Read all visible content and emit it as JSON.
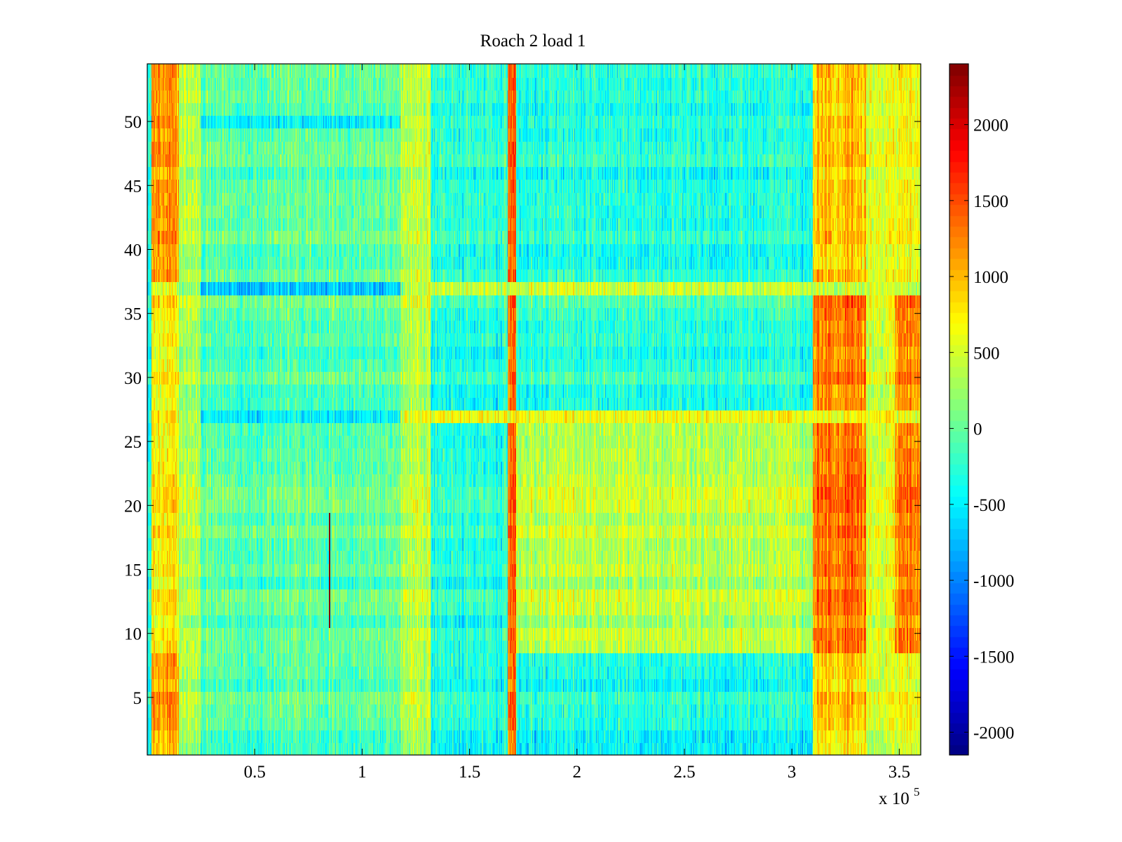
{
  "chart_data": {
    "type": "heatmap",
    "title": "Roach 2 load 1",
    "xlabel": "",
    "ylabel": "",
    "x_exponent_label": "x 10",
    "x_exponent_power": "5",
    "xlim": [
      0,
      3.6
    ],
    "ylim": [
      0.5,
      54.5
    ],
    "x_ticks": [
      0.5,
      1,
      1.5,
      2,
      2.5,
      3,
      3.5
    ],
    "x_tick_labels": [
      "0.5",
      "1",
      "1.5",
      "2",
      "2.5",
      "3",
      "3.5"
    ],
    "y_ticks": [
      5,
      10,
      15,
      20,
      25,
      30,
      35,
      40,
      45,
      50
    ],
    "y_tick_labels": [
      "5",
      "10",
      "15",
      "20",
      "25",
      "30",
      "35",
      "40",
      "45",
      "50"
    ],
    "rows": 54,
    "colormap": "jet",
    "colorbar": {
      "clim": [
        -2150,
        2400
      ],
      "ticks": [
        -2000,
        -1500,
        -1000,
        -500,
        0,
        500,
        1000,
        1500,
        2000
      ],
      "tick_labels": [
        "-2000",
        "-1500",
        "-1000",
        "-500",
        "0",
        "500",
        "1000",
        "1500",
        "2000"
      ]
    },
    "column_bands": [
      {
        "x_start": 0.0,
        "x_end": 0.02,
        "level": -300
      },
      {
        "x_start": 0.02,
        "x_end": 0.15,
        "level": 700
      },
      {
        "x_start": 0.15,
        "x_end": 0.25,
        "level": 300
      },
      {
        "x_start": 0.25,
        "x_end": 1.18,
        "level": -50
      },
      {
        "x_start": 1.18,
        "x_end": 1.32,
        "level": 400
      },
      {
        "x_start": 1.32,
        "x_end": 1.68,
        "level": -300
      },
      {
        "x_start": 1.68,
        "x_end": 1.72,
        "level": 1400
      },
      {
        "x_start": 1.72,
        "x_end": 3.1,
        "level": -250
      },
      {
        "x_start": 3.1,
        "x_end": 3.35,
        "level": 1300
      },
      {
        "x_start": 3.35,
        "x_end": 3.48,
        "level": 500
      },
      {
        "x_start": 3.48,
        "x_end": 3.6,
        "level": 1300
      }
    ],
    "region_offsets": [
      {
        "x_start": 0.02,
        "x_end": 0.15,
        "rows": [
          [
            1,
            8
          ],
          [
            38,
            54
          ]
        ],
        "level": 1100
      },
      {
        "x_start": 3.1,
        "x_end": 3.35,
        "rows": [
          [
            1,
            8
          ],
          [
            38,
            54
          ]
        ],
        "level": 900
      },
      {
        "x_start": 3.48,
        "x_end": 3.6,
        "rows": [
          [
            1,
            8
          ],
          [
            38,
            54
          ]
        ],
        "level": 700
      },
      {
        "x_start": 1.72,
        "x_end": 3.1,
        "rows": [
          [
            1,
            8
          ],
          [
            38,
            54
          ]
        ],
        "level": -350
      },
      {
        "x_start": 1.72,
        "x_end": 3.1,
        "rows": [
          [
            9,
            26
          ]
        ],
        "level": 350
      },
      {
        "x_start": 0.25,
        "x_end": 1.18,
        "rows": [
          [
            27,
            27
          ],
          [
            37,
            37
          ],
          [
            50,
            50
          ]
        ],
        "level": -550
      },
      {
        "x_start": 1.2,
        "x_end": 3.6,
        "rows": [
          [
            27,
            27
          ],
          [
            37,
            37
          ]
        ],
        "level": 600
      }
    ],
    "annotations": [
      {
        "type": "vertical-streak",
        "x": 0.85,
        "y_start": 10.5,
        "y_end": 19.5,
        "level": 2400
      }
    ]
  }
}
